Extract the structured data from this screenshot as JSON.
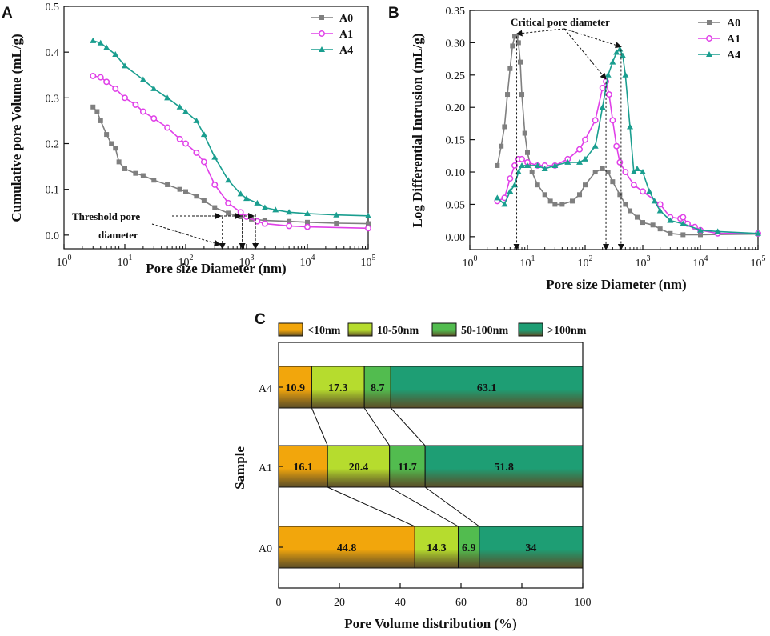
{
  "panels": {
    "a": "A",
    "b": "B",
    "c": "C"
  },
  "colors": {
    "A0": "#7f7f7f",
    "A1": "#e040e8",
    "A4": "#1a9e8f",
    "lt10": "#f2a60c",
    "10_50": "#b6dc2e",
    "50_100": "#52bc4f",
    "gt100": "#1e9e74"
  },
  "chart_data": [
    {
      "id": "A",
      "type": "line",
      "xscale": "log",
      "xlim": [
        1,
        100000
      ],
      "ylim": [
        -0.03,
        0.5
      ],
      "xlabel": "Pore size Diameter (nm)",
      "ylabel": "Cumulative pore  Volume (mL/g)",
      "xticks": [
        {
          "v": 1,
          "m": "10",
          "e": "0"
        },
        {
          "v": 10,
          "m": "10",
          "e": "1"
        },
        {
          "v": 100,
          "m": "10",
          "e": "2"
        },
        {
          "v": 1000,
          "m": "10",
          "e": "3"
        },
        {
          "v": 10000,
          "m": "10",
          "e": "4"
        },
        {
          "v": 100000,
          "m": "10",
          "e": "5"
        }
      ],
      "yticks": [
        {
          "v": 0,
          "t": "0.0"
        },
        {
          "v": 0.1,
          "t": "0.1"
        },
        {
          "v": 0.2,
          "t": "0.2"
        },
        {
          "v": 0.3,
          "t": "0.3"
        },
        {
          "v": 0.4,
          "t": "0.4"
        },
        {
          "v": 0.5,
          "t": "0.5"
        }
      ],
      "legend_position": "top-right",
      "annotation": {
        "lines": [
          "Threshold pore",
          "diameter"
        ],
        "targets": [
          400,
          850,
          1400
        ]
      },
      "series": [
        {
          "name": "A0",
          "marker": "square",
          "points": [
            [
              3,
              0.28
            ],
            [
              3.5,
              0.27
            ],
            [
              4,
              0.25
            ],
            [
              5,
              0.22
            ],
            [
              6,
              0.2
            ],
            [
              7,
              0.19
            ],
            [
              8,
              0.16
            ],
            [
              10,
              0.145
            ],
            [
              15,
              0.135
            ],
            [
              20,
              0.13
            ],
            [
              30,
              0.12
            ],
            [
              50,
              0.11
            ],
            [
              80,
              0.1
            ],
            [
              100,
              0.095
            ],
            [
              150,
              0.085
            ],
            [
              200,
              0.075
            ],
            [
              300,
              0.06
            ],
            [
              500,
              0.048
            ],
            [
              800,
              0.04
            ],
            [
              1200,
              0.035
            ],
            [
              2000,
              0.032
            ],
            [
              5000,
              0.03
            ],
            [
              10000,
              0.028
            ],
            [
              30000,
              0.026
            ],
            [
              100000,
              0.025
            ]
          ]
        },
        {
          "name": "A1",
          "marker": "circle",
          "points": [
            [
              3,
              0.348
            ],
            [
              4,
              0.345
            ],
            [
              5,
              0.335
            ],
            [
              7,
              0.32
            ],
            [
              10,
              0.3
            ],
            [
              15,
              0.285
            ],
            [
              20,
              0.27
            ],
            [
              30,
              0.255
            ],
            [
              50,
              0.235
            ],
            [
              80,
              0.21
            ],
            [
              100,
              0.2
            ],
            [
              150,
              0.18
            ],
            [
              200,
              0.16
            ],
            [
              300,
              0.11
            ],
            [
              500,
              0.07
            ],
            [
              800,
              0.05
            ],
            [
              1000,
              0.04
            ],
            [
              1500,
              0.03
            ],
            [
              2000,
              0.025
            ],
            [
              5000,
              0.02
            ],
            [
              10000,
              0.018
            ],
            [
              100000,
              0.015
            ]
          ]
        },
        {
          "name": "A4",
          "marker": "triangle",
          "points": [
            [
              3,
              0.425
            ],
            [
              4,
              0.42
            ],
            [
              5,
              0.41
            ],
            [
              7,
              0.395
            ],
            [
              10,
              0.37
            ],
            [
              20,
              0.34
            ],
            [
              30,
              0.32
            ],
            [
              50,
              0.3
            ],
            [
              80,
              0.28
            ],
            [
              100,
              0.27
            ],
            [
              150,
              0.25
            ],
            [
              200,
              0.22
            ],
            [
              300,
              0.17
            ],
            [
              500,
              0.12
            ],
            [
              800,
              0.09
            ],
            [
              1000,
              0.08
            ],
            [
              1500,
              0.07
            ],
            [
              2000,
              0.06
            ],
            [
              3000,
              0.055
            ],
            [
              5000,
              0.05
            ],
            [
              10000,
              0.047
            ],
            [
              30000,
              0.044
            ],
            [
              100000,
              0.042
            ]
          ]
        }
      ]
    },
    {
      "id": "B",
      "type": "line",
      "xscale": "log",
      "xlim": [
        1,
        100000
      ],
      "ylim": [
        -0.02,
        0.35
      ],
      "xlabel": "Pore size Diameter (nm)",
      "ylabel": "Log Differential Intrusion (mL/g)",
      "xticks": [
        {
          "v": 1,
          "m": "10",
          "e": "0"
        },
        {
          "v": 10,
          "m": "10",
          "e": "1"
        },
        {
          "v": 100,
          "m": "10",
          "e": "2"
        },
        {
          "v": 1000,
          "m": "10",
          "e": "3"
        },
        {
          "v": 10000,
          "m": "10",
          "e": "4"
        },
        {
          "v": 100000,
          "m": "10",
          "e": "5"
        }
      ],
      "yticks": [
        {
          "v": 0,
          "t": "0.00"
        },
        {
          "v": 0.05,
          "t": "0.05"
        },
        {
          "v": 0.1,
          "t": "0.10"
        },
        {
          "v": 0.15,
          "t": "0.15"
        },
        {
          "v": 0.2,
          "t": "0.20"
        },
        {
          "v": 0.25,
          "t": "0.25"
        },
        {
          "v": 0.3,
          "t": "0.30"
        },
        {
          "v": 0.35,
          "t": "0.35"
        }
      ],
      "legend_position": "top-right",
      "annotation": {
        "text": "Critical pore diameter",
        "targets": [
          [
            6.5,
            0.31
          ],
          [
            230,
            0.24
          ],
          [
            420,
            0.29
          ]
        ]
      },
      "series": [
        {
          "name": "A0",
          "marker": "square",
          "points": [
            [
              3,
              0.11
            ],
            [
              3.5,
              0.14
            ],
            [
              4,
              0.17
            ],
            [
              4.5,
              0.22
            ],
            [
              5,
              0.26
            ],
            [
              5.5,
              0.295
            ],
            [
              6,
              0.31
            ],
            [
              6.5,
              0.31
            ],
            [
              7,
              0.3
            ],
            [
              7.5,
              0.27
            ],
            [
              8,
              0.22
            ],
            [
              9,
              0.16
            ],
            [
              10,
              0.13
            ],
            [
              12,
              0.1
            ],
            [
              15,
              0.08
            ],
            [
              20,
              0.065
            ],
            [
              25,
              0.055
            ],
            [
              30,
              0.05
            ],
            [
              40,
              0.05
            ],
            [
              60,
              0.055
            ],
            [
              80,
              0.065
            ],
            [
              100,
              0.08
            ],
            [
              150,
              0.1
            ],
            [
              200,
              0.105
            ],
            [
              250,
              0.1
            ],
            [
              300,
              0.085
            ],
            [
              400,
              0.065
            ],
            [
              500,
              0.05
            ],
            [
              600,
              0.04
            ],
            [
              800,
              0.03
            ],
            [
              1000,
              0.022
            ],
            [
              1500,
              0.018
            ],
            [
              2000,
              0.012
            ],
            [
              3000,
              0.005
            ],
            [
              5000,
              0.003
            ],
            [
              10000,
              0.003
            ],
            [
              100000,
              0.004
            ]
          ]
        },
        {
          "name": "A1",
          "marker": "circle",
          "points": [
            [
              3,
              0.055
            ],
            [
              4,
              0.06
            ],
            [
              5,
              0.09
            ],
            [
              6,
              0.11
            ],
            [
              7,
              0.12
            ],
            [
              8,
              0.12
            ],
            [
              10,
              0.115
            ],
            [
              15,
              0.11
            ],
            [
              20,
              0.11
            ],
            [
              30,
              0.11
            ],
            [
              50,
              0.12
            ],
            [
              80,
              0.135
            ],
            [
              100,
              0.15
            ],
            [
              150,
              0.18
            ],
            [
              200,
              0.23
            ],
            [
              230,
              0.24
            ],
            [
              260,
              0.22
            ],
            [
              300,
              0.18
            ],
            [
              350,
              0.14
            ],
            [
              400,
              0.115
            ],
            [
              500,
              0.1
            ],
            [
              700,
              0.08
            ],
            [
              1000,
              0.07
            ],
            [
              2000,
              0.05
            ],
            [
              3000,
              0.03
            ],
            [
              4500,
              0.028
            ],
            [
              5000,
              0.03
            ],
            [
              6000,
              0.02
            ],
            [
              8000,
              0.015
            ],
            [
              10000,
              0.01
            ],
            [
              20000,
              0.005
            ],
            [
              100000,
              0.005
            ]
          ]
        },
        {
          "name": "A4",
          "marker": "triangle",
          "points": [
            [
              3,
              0.06
            ],
            [
              4,
              0.05
            ],
            [
              5,
              0.07
            ],
            [
              6,
              0.08
            ],
            [
              7,
              0.1
            ],
            [
              8,
              0.11
            ],
            [
              10,
              0.11
            ],
            [
              15,
              0.11
            ],
            [
              20,
              0.105
            ],
            [
              30,
              0.11
            ],
            [
              50,
              0.115
            ],
            [
              80,
              0.115
            ],
            [
              100,
              0.12
            ],
            [
              150,
              0.14
            ],
            [
              200,
              0.2
            ],
            [
              250,
              0.25
            ],
            [
              300,
              0.27
            ],
            [
              350,
              0.285
            ],
            [
              400,
              0.29
            ],
            [
              450,
              0.28
            ],
            [
              500,
              0.25
            ],
            [
              600,
              0.17
            ],
            [
              700,
              0.1
            ],
            [
              800,
              0.105
            ],
            [
              1000,
              0.1
            ],
            [
              1300,
              0.07
            ],
            [
              1600,
              0.055
            ],
            [
              2000,
              0.04
            ],
            [
              3000,
              0.025
            ],
            [
              5000,
              0.02
            ],
            [
              10000,
              0.01
            ],
            [
              20000,
              0.008
            ],
            [
              100000,
              0.005
            ]
          ]
        }
      ]
    },
    {
      "id": "C",
      "type": "bar",
      "orientation": "horizontal",
      "stacked": true,
      "categories": [
        "A4",
        "A1",
        "A0"
      ],
      "series": [
        {
          "name": "<10nm",
          "values": [
            10.9,
            16.1,
            44.8
          ]
        },
        {
          "name": "10-50nm",
          "values": [
            17.3,
            20.4,
            14.3
          ]
        },
        {
          "name": "50-100nm",
          "values": [
            8.7,
            11.7,
            6.9
          ]
        },
        {
          "name": ">100nm",
          "values": [
            63.1,
            51.8,
            34
          ]
        }
      ],
      "value_labels": [
        [
          "10.9",
          "17.3",
          "8.7",
          "63.1"
        ],
        [
          "16.1",
          "20.4",
          "11.7",
          "51.8"
        ],
        [
          "44.8",
          "14.3",
          "6.9",
          "34"
        ]
      ],
      "xlabel": "Pore Volume distribution (%)",
      "ylabel": "Sample",
      "xlim": [
        0,
        100
      ],
      "xticks": [
        "0",
        "20",
        "40",
        "60",
        "80",
        "100"
      ],
      "legend_position": "top"
    }
  ]
}
